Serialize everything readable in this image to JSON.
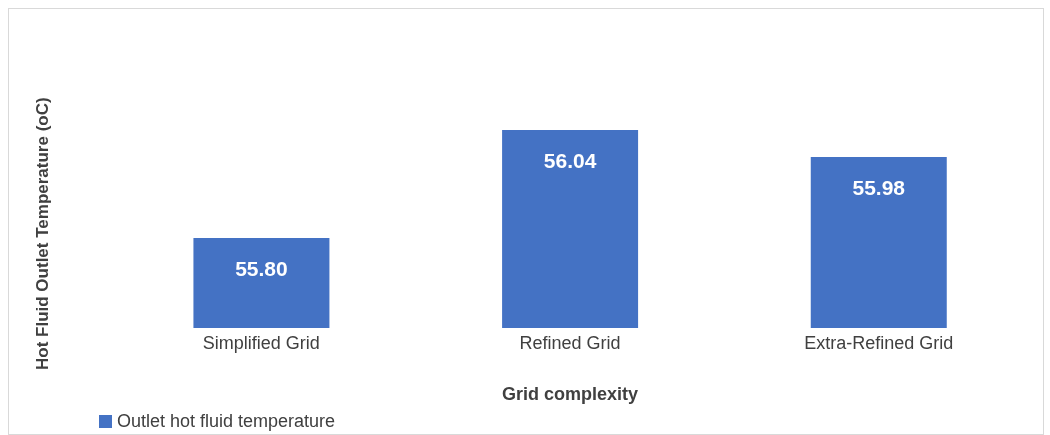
{
  "chart_data": {
    "type": "bar",
    "xlabel": "Grid complexity",
    "ylabel": "Hot Fluid Outlet Temperature (oC)",
    "categories": [
      "Simplified Grid",
      "Refined Grid",
      "Extra-Refined Grid"
    ],
    "series": [
      {
        "name": "Outlet hot fluid temperature",
        "color": "#4472c4",
        "values": [
          55.8,
          56.04,
          55.98
        ],
        "value_labels": [
          "55.80",
          "56.04",
          "55.98"
        ]
      }
    ],
    "ylim": [
      55.6,
      56.04
    ],
    "legend": "bottom left",
    "grid": false
  }
}
